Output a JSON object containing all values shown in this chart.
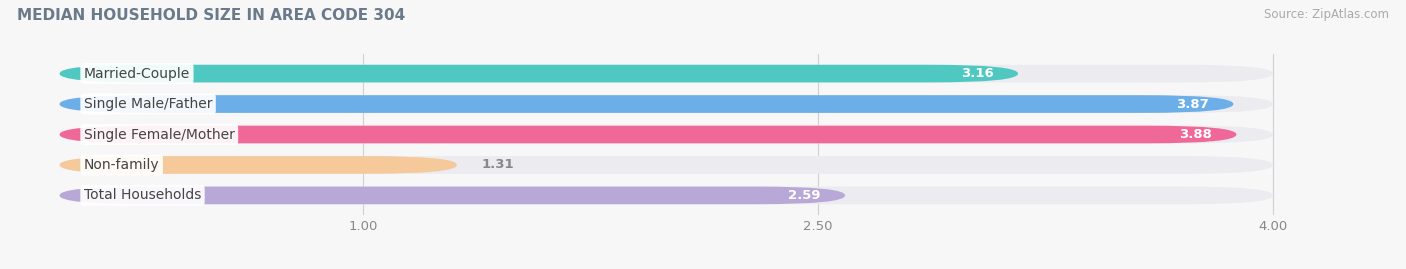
{
  "title": "MEDIAN HOUSEHOLD SIZE IN AREA CODE 304",
  "source": "Source: ZipAtlas.com",
  "categories": [
    "Married-Couple",
    "Single Male/Father",
    "Single Female/Mother",
    "Non-family",
    "Total Households"
  ],
  "values": [
    3.16,
    3.87,
    3.88,
    1.31,
    2.59
  ],
  "bar_colors": [
    "#4ec8c0",
    "#6baee8",
    "#f06898",
    "#f5c99a",
    "#b8a8d8"
  ],
  "bar_bg_color": "#ebebf0",
  "xlim_data": [
    0.0,
    4.0
  ],
  "xlim_display": [
    -0.15,
    4.3
  ],
  "xticks": [
    1.0,
    2.5,
    4.0
  ],
  "label_fontsize": 10,
  "value_fontsize": 9.5,
  "title_fontsize": 11,
  "fig_bg_color": "#f7f7f7",
  "bar_height": 0.58,
  "title_color": "#6a7a8a",
  "source_color": "#aaaaaa",
  "label_text_color": "#444444",
  "value_text_color": "#ffffff",
  "tick_color": "#888888"
}
